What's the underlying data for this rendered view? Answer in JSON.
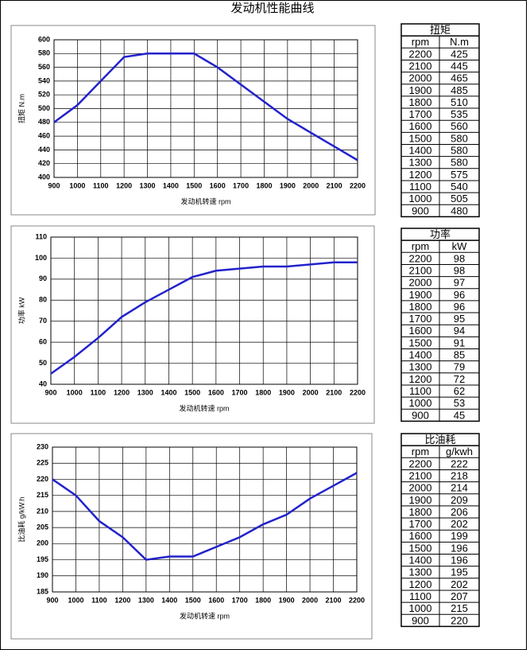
{
  "title": "发动机性能曲线",
  "chart_data": [
    {
      "type": "line",
      "x": [
        900,
        1000,
        1100,
        1200,
        1300,
        1400,
        1500,
        1600,
        1700,
        1800,
        1900,
        2000,
        2100,
        2200
      ],
      "values": [
        480,
        505,
        540,
        575,
        580,
        580,
        580,
        560,
        535,
        510,
        485,
        465,
        445,
        425
      ],
      "color": "#2222cc",
      "xlim": [
        900,
        2200
      ],
      "xticks": [
        900,
        1000,
        1100,
        1200,
        1300,
        1400,
        1500,
        1600,
        1700,
        1800,
        1900,
        2000,
        2100,
        2200
      ],
      "ylim": [
        400,
        600
      ],
      "yticks": [
        400,
        420,
        440,
        460,
        480,
        500,
        520,
        540,
        560,
        580,
        600
      ],
      "x_label": "发动机转速  rpm",
      "y_label": "扭矩  N.m",
      "grid": true
    },
    {
      "type": "line",
      "x": [
        900,
        1000,
        1100,
        1200,
        1300,
        1400,
        1500,
        1600,
        1700,
        1800,
        1900,
        2000,
        2100,
        2200
      ],
      "values": [
        45,
        53,
        62,
        72,
        79,
        85,
        91,
        94,
        95,
        96,
        96,
        97,
        98,
        98
      ],
      "color": "#2222cc",
      "xlim": [
        900,
        2200
      ],
      "xticks": [
        900,
        1000,
        1100,
        1200,
        1300,
        1400,
        1500,
        1600,
        1700,
        1800,
        1900,
        2000,
        2100,
        2200
      ],
      "ylim": [
        40,
        110
      ],
      "yticks": [
        40,
        50,
        60,
        70,
        80,
        90,
        100,
        110
      ],
      "x_label": "发动机转速  rpm",
      "y_label": "功率  kW",
      "grid": true
    },
    {
      "type": "line",
      "x": [
        900,
        1000,
        1100,
        1200,
        1300,
        1400,
        1500,
        1600,
        1700,
        1800,
        1900,
        2000,
        2100,
        2200
      ],
      "values": [
        220,
        215,
        207,
        202,
        195,
        196,
        196,
        199,
        202,
        206,
        209,
        214,
        218,
        222
      ],
      "color": "#2222cc",
      "xlim": [
        900,
        2200
      ],
      "xticks": [
        900,
        1000,
        1100,
        1200,
        1300,
        1400,
        1500,
        1600,
        1700,
        1800,
        1900,
        2000,
        2100,
        2200
      ],
      "ylim": [
        185,
        230
      ],
      "yticks": [
        185,
        190,
        195,
        200,
        205,
        210,
        215,
        220,
        225,
        230
      ],
      "x_label": "发动机转速  rpm",
      "y_label": "比油耗  g/kW.h",
      "grid": true
    }
  ],
  "tables": [
    {
      "title": "扭矩",
      "headers": [
        "rpm",
        "N.m"
      ],
      "rows": [
        [
          2200,
          425
        ],
        [
          2100,
          445
        ],
        [
          2000,
          465
        ],
        [
          1900,
          485
        ],
        [
          1800,
          510
        ],
        [
          1700,
          535
        ],
        [
          1600,
          560
        ],
        [
          1500,
          580
        ],
        [
          1400,
          580
        ],
        [
          1300,
          580
        ],
        [
          1200,
          575
        ],
        [
          1100,
          540
        ],
        [
          1000,
          505
        ],
        [
          900,
          480
        ]
      ]
    },
    {
      "title": "功率",
      "headers": [
        "rpm",
        "kW"
      ],
      "rows": [
        [
          2200,
          98
        ],
        [
          2100,
          98
        ],
        [
          2000,
          97
        ],
        [
          1900,
          96
        ],
        [
          1800,
          96
        ],
        [
          1700,
          95
        ],
        [
          1600,
          94
        ],
        [
          1500,
          91
        ],
        [
          1400,
          85
        ],
        [
          1300,
          79
        ],
        [
          1200,
          72
        ],
        [
          1100,
          62
        ],
        [
          1000,
          53
        ],
        [
          900,
          45
        ]
      ]
    },
    {
      "title": "比油耗",
      "headers": [
        "rpm",
        "g/kwh"
      ],
      "rows": [
        [
          2200,
          222
        ],
        [
          2100,
          218
        ],
        [
          2000,
          214
        ],
        [
          1900,
          209
        ],
        [
          1800,
          206
        ],
        [
          1700,
          202
        ],
        [
          1600,
          199
        ],
        [
          1500,
          196
        ],
        [
          1400,
          196
        ],
        [
          1300,
          195
        ],
        [
          1200,
          202
        ],
        [
          1100,
          207
        ],
        [
          1000,
          215
        ],
        [
          900,
          220
        ]
      ]
    }
  ]
}
